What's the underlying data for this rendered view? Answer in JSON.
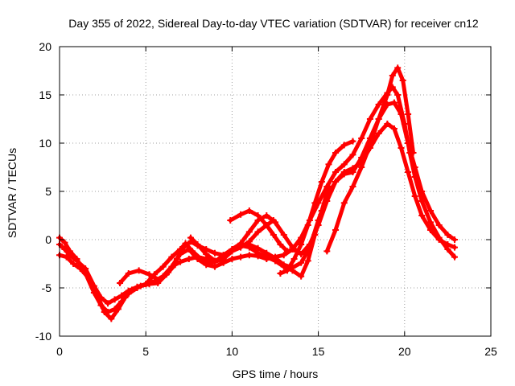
{
  "chart_data": {
    "type": "line",
    "title": "Day 355 of 2022, Sidereal Day-to-day VTEC variation (SDTVAR) for receiver cn12",
    "xlabel": "GPS time / hours",
    "ylabel": "SDTVAR / TECUs",
    "xlim": [
      0,
      25
    ],
    "ylim": [
      -10,
      20
    ],
    "xticks": [
      0,
      5,
      10,
      15,
      20,
      25
    ],
    "yticks": [
      -10,
      -5,
      0,
      5,
      10,
      15,
      20
    ],
    "xtick_labels": [
      "0",
      "5",
      "10",
      "15",
      "20",
      "25"
    ],
    "ytick_labels": [
      "-10",
      "-5",
      "0",
      "5",
      "10",
      "15",
      "20"
    ],
    "grid": true,
    "legend": "none",
    "marker": "+",
    "color": "#ff0000",
    "series": [
      {
        "name": "trace-a",
        "x": [
          0,
          0.3,
          0.6,
          1.0,
          1.5,
          2.0,
          2.4,
          2.8,
          3.2,
          3.6,
          4.0,
          4.5,
          5.0,
          5.5,
          6.0,
          6.5,
          7.0,
          7.5,
          8.0,
          8.5,
          9.0,
          9.5,
          10.0,
          10.5,
          11.0,
          11.5,
          12.0,
          12.5,
          13.0,
          13.5,
          14.0,
          14.5,
          15.0,
          15.5,
          16.0,
          16.5,
          17.0,
          17.5,
          18.0,
          18.5,
          19.0,
          19.3,
          19.6,
          20.0,
          20.3,
          20.6,
          21.0,
          21.5,
          22.0,
          22.5,
          22.9
        ],
        "y": [
          -0.5,
          -1.0,
          -1.6,
          -2.2,
          -3.0,
          -4.8,
          -6.0,
          -6.6,
          -6.2,
          -5.8,
          -5.3,
          -4.9,
          -4.6,
          -4.3,
          -3.8,
          -2.8,
          -1.5,
          -1.0,
          -2.0,
          -2.6,
          -2.8,
          -2.4,
          -2.0,
          -1.8,
          -1.6,
          -1.7,
          -2.0,
          -1.8,
          -1.6,
          -1.0,
          0.2,
          2.0,
          3.8,
          5.5,
          7.0,
          7.8,
          8.8,
          10.5,
          12.5,
          14.0,
          15.2,
          15.8,
          15.0,
          12.0,
          9.0,
          6.5,
          4.0,
          1.8,
          0.2,
          -1.0,
          -1.8
        ]
      },
      {
        "name": "trace-b",
        "x": [
          0,
          0.3,
          0.6,
          1.0,
          1.5,
          2.0,
          2.4,
          2.8,
          3.2,
          3.6,
          4.0,
          4.5,
          5.0,
          5.5,
          6.0,
          6.5,
          7.0,
          7.3,
          7.7,
          8.2,
          8.6,
          9.0,
          9.5,
          10.0,
          10.5,
          11.0,
          11.5,
          12.0,
          12.5,
          13.0,
          13.5,
          14.0,
          14.5,
          15.0,
          15.5,
          16.0,
          16.5,
          17.0,
          17.5,
          18.0,
          18.5,
          19.0,
          19.4,
          19.8,
          20.2,
          20.6,
          21.0,
          21.5,
          22.0,
          22.5,
          22.9
        ],
        "y": [
          0.2,
          -0.3,
          -1.2,
          -2.0,
          -3.5,
          -5.5,
          -6.8,
          -7.5,
          -7.2,
          -6.4,
          -5.6,
          -5.0,
          -4.6,
          -3.6,
          -2.8,
          -1.8,
          -1.0,
          -0.4,
          -1.2,
          -2.0,
          -2.5,
          -2.3,
          -1.6,
          -1.0,
          -0.6,
          -0.5,
          -0.9,
          -1.4,
          -1.9,
          -2.6,
          -2.9,
          -2.4,
          -0.8,
          2.0,
          4.5,
          6.0,
          6.8,
          7.0,
          8.5,
          10.5,
          12.5,
          14.0,
          14.2,
          13.0,
          10.0,
          7.5,
          5.0,
          3.0,
          1.5,
          0.5,
          0.0
        ]
      },
      {
        "name": "trace-c",
        "x": [
          0,
          0.4,
          0.8,
          1.2,
          1.7,
          2.2,
          2.6,
          3.0,
          3.4,
          3.8,
          4.2,
          4.7,
          5.2,
          5.7,
          6.2,
          6.7,
          7.0,
          7.5,
          8.0,
          8.5,
          9.0,
          9.5,
          10.0,
          10.5,
          11.0,
          11.5,
          12.0,
          12.5,
          13.0,
          13.5,
          14.0,
          14.4,
          14.8,
          15.2,
          15.6
        ],
        "y": [
          -1.6,
          -1.8,
          -2.5,
          -3.0,
          -4.0,
          -5.8,
          -7.5,
          -8.2,
          -7.2,
          -6.0,
          -5.2,
          -4.8,
          -4.6,
          -4.5,
          -3.6,
          -2.6,
          -2.3,
          -2.0,
          -1.8,
          -2.0,
          -2.3,
          -2.0,
          -1.2,
          -0.6,
          -0.8,
          -1.4,
          -1.8,
          -2.2,
          -2.8,
          -3.2,
          -3.8,
          -2.2,
          0.5,
          3.0,
          5.5
        ]
      },
      {
        "name": "trace-d",
        "x": [
          3.5,
          4.0,
          4.6,
          5.2,
          5.8,
          6.3,
          6.8,
          7.2,
          7.6,
          8.0,
          8.5,
          9.0,
          9.5,
          10.0,
          10.5,
          11.0,
          11.5,
          12.0,
          12.4
        ],
        "y": [
          -4.5,
          -3.5,
          -3.2,
          -3.6,
          -4.2,
          -3.4,
          -2.0,
          -0.8,
          -0.2,
          -0.6,
          -1.0,
          -1.4,
          -1.6,
          -1.2,
          -0.8,
          -0.2,
          0.8,
          1.5,
          2.0
        ]
      },
      {
        "name": "trace-e",
        "x": [
          7.6,
          8.0,
          8.5,
          9.0,
          9.5,
          10.0,
          10.5,
          11.0,
          11.5,
          12.0,
          12.5,
          13.0,
          13.5,
          14.0,
          14.5,
          15.0,
          15.5,
          16.0,
          16.5,
          17.0,
          17.5,
          18.0,
          18.5,
          19.0,
          19.4,
          19.8,
          20.2,
          20.6,
          21.0,
          21.5,
          22.0,
          22.5,
          22.9
        ],
        "y": [
          0.2,
          -0.5,
          -1.5,
          -2.2,
          -1.8,
          -1.0,
          -0.4,
          0.8,
          2.0,
          2.5,
          1.8,
          0.5,
          -0.8,
          -1.5,
          -0.5,
          1.5,
          4.0,
          6.0,
          7.0,
          7.4,
          8.0,
          9.5,
          11.0,
          12.0,
          11.5,
          9.5,
          7.0,
          4.5,
          2.5,
          1.0,
          0.0,
          -0.5,
          -0.8
        ]
      },
      {
        "name": "trace-f",
        "x": [
          9.9,
          10.5,
          11.0,
          11.5,
          12.0,
          12.4,
          12.8,
          13.2,
          13.6
        ],
        "y": [
          2.0,
          2.6,
          3.0,
          2.5,
          1.5,
          0.5,
          -0.5,
          -1.2,
          -1.0
        ]
      },
      {
        "name": "trace-g",
        "x": [
          12.8,
          13.2,
          13.6,
          14.0,
          14.4,
          14.8,
          15.2,
          15.6,
          16.0,
          16.5,
          17.0
        ],
        "y": [
          -3.5,
          -3.2,
          -2.0,
          -0.5,
          1.5,
          3.8,
          6.0,
          7.8,
          9.0,
          9.8,
          10.2
        ]
      },
      {
        "name": "trace-h",
        "x": [
          15.5,
          16.0,
          16.5,
          17.0,
          17.5,
          18.0,
          18.5,
          19.0,
          19.3,
          19.6,
          19.9,
          20.2,
          20.5
        ],
        "y": [
          -1.2,
          1.0,
          3.8,
          5.5,
          7.5,
          9.8,
          12.5,
          15.0,
          17.0,
          17.8,
          16.5,
          13.0,
          9.0
        ]
      }
    ]
  }
}
